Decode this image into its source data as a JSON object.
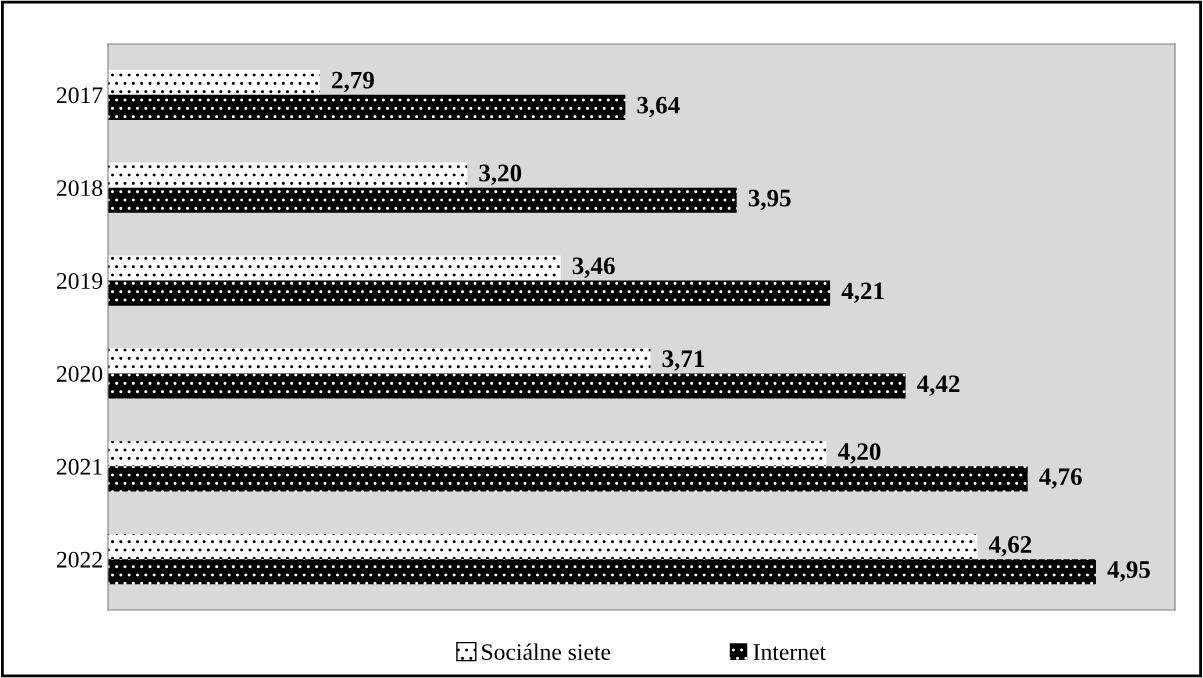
{
  "chart_data": {
    "type": "bar",
    "orientation": "horizontal",
    "categories": [
      "2017",
      "2018",
      "2019",
      "2020",
      "2021",
      "2022"
    ],
    "series": [
      {
        "name": "Sociálne siete",
        "color": "#ffffff",
        "values": [
          2.79,
          3.2,
          3.46,
          3.71,
          4.2,
          4.62
        ],
        "value_labels": [
          "2,79",
          "3,20",
          "3,46",
          "3,71",
          "4,20",
          "4,62"
        ]
      },
      {
        "name": "Internet",
        "color": "#000000",
        "values": [
          3.64,
          3.95,
          4.21,
          4.42,
          4.76,
          4.95
        ],
        "value_labels": [
          "3,64",
          "3,95",
          "4,21",
          "4,42",
          "4,76",
          "4,95"
        ]
      }
    ],
    "xlim": [
      2.2,
      5.17
    ],
    "tick_labels": "y",
    "grid": false,
    "legend": "bottom"
  }
}
